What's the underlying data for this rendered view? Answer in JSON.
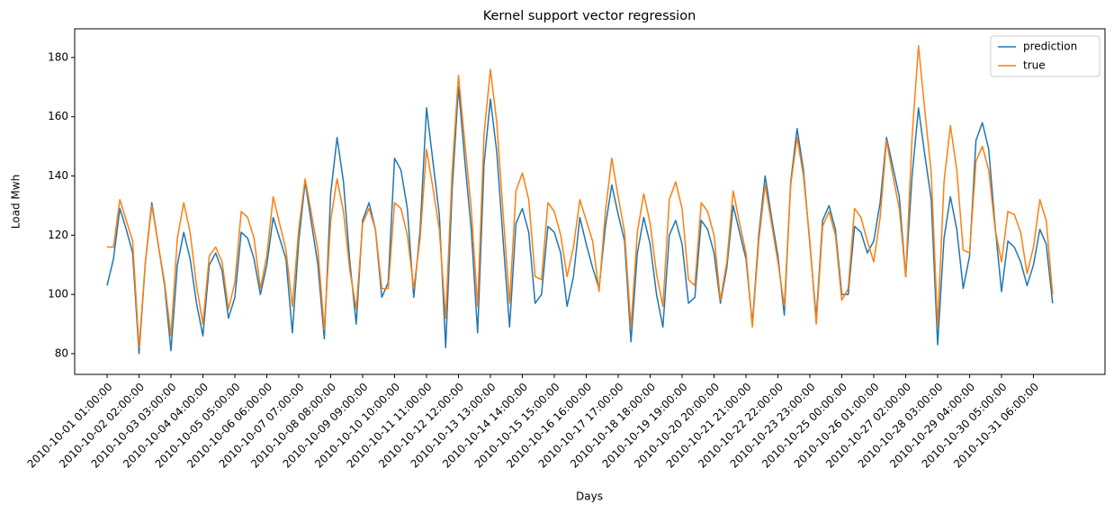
{
  "chart_data": {
    "type": "line",
    "title": "Kernel support vector regression",
    "x_label": "Days",
    "y_label": "Load Mwh",
    "categories": [
      "2010-10-01 01:00:00",
      null,
      null,
      null,
      null,
      "2010-10-02 02:00:00",
      null,
      null,
      null,
      null,
      "2010-10-03 03:00:00",
      null,
      null,
      null,
      null,
      "2010-10-04 04:00:00",
      null,
      null,
      null,
      null,
      "2010-10-05 05:00:00",
      null,
      null,
      null,
      null,
      "2010-10-06 06:00:00",
      null,
      null,
      null,
      null,
      "2010-10-07 07:00:00",
      null,
      null,
      null,
      null,
      "2010-10-08 08:00:00",
      null,
      null,
      null,
      null,
      "2010-10-09 09:00:00",
      null,
      null,
      null,
      null,
      "2010-10-10 10:00:00",
      null,
      null,
      null,
      null,
      "2010-10-11 11:00:00",
      null,
      null,
      null,
      null,
      "2010-10-12 12:00:00",
      null,
      null,
      null,
      null,
      "2010-10-13 13:00:00",
      null,
      null,
      null,
      null,
      "2010-10-14 14:00:00",
      null,
      null,
      null,
      null,
      "2010-10-15 15:00:00",
      null,
      null,
      null,
      null,
      "2010-10-16 16:00:00",
      null,
      null,
      null,
      null,
      "2010-10-17 17:00:00",
      null,
      null,
      null,
      null,
      "2010-10-18 18:00:00",
      null,
      null,
      null,
      null,
      "2010-10-19 19:00:00",
      null,
      null,
      null,
      null,
      "2010-10-20 20:00:00",
      null,
      null,
      null,
      null,
      "2010-10-21 21:00:00",
      null,
      null,
      null,
      null,
      "2010-10-22 22:00:00",
      null,
      null,
      null,
      null,
      "2010-10-23 23:00:00",
      null,
      null,
      null,
      null,
      "2010-10-25 00:00:00",
      null,
      null,
      null,
      null,
      "2010-10-26 01:00:00",
      null,
      null,
      null,
      null,
      "2010-10-27 02:00:00",
      null,
      null,
      null,
      null,
      "2010-10-28 03:00:00",
      null,
      null,
      null,
      null,
      "2010-10-29 04:00:00",
      null,
      null,
      null,
      null,
      "2010-10-30 05:00:00",
      null,
      null,
      null,
      null,
      "2010-10-31 06:00:00",
      null,
      null,
      null
    ],
    "series": [
      {
        "name": "prediction",
        "color": "#1f77b4",
        "values": [
          103,
          112,
          129,
          122,
          114,
          80,
          111,
          131,
          117,
          103,
          81,
          110,
          121,
          112,
          97,
          86,
          110,
          114,
          108,
          92,
          99,
          121,
          119,
          112,
          100,
          110,
          126,
          119,
          112,
          87,
          118,
          138,
          124,
          110,
          85,
          134,
          153,
          138,
          111,
          90,
          125,
          131,
          122,
          99,
          104,
          146,
          142,
          129,
          99,
          122,
          163,
          145,
          127,
          82,
          135,
          170,
          145,
          122,
          87,
          144,
          166,
          148,
          118,
          89,
          124,
          129,
          121,
          97,
          100,
          123,
          121,
          114,
          96,
          106,
          126,
          117,
          109,
          102,
          123,
          137,
          127,
          118,
          84,
          114,
          126,
          117,
          100,
          89,
          120,
          125,
          117,
          97,
          99,
          125,
          122,
          114,
          97,
          109,
          130,
          121,
          112,
          90,
          120,
          140,
          126,
          113,
          93,
          138,
          156,
          142,
          117,
          92,
          125,
          130,
          122,
          100,
          100,
          123,
          121,
          114,
          118,
          131,
          153,
          143,
          133,
          106,
          140,
          163,
          147,
          132,
          83,
          119,
          133,
          122,
          102,
          113,
          152,
          158,
          149,
          123,
          101,
          118,
          116,
          111,
          103,
          110,
          122,
          117,
          97
        ]
      },
      {
        "name": "true",
        "color": "#ff7f0e",
        "values": [
          116,
          116,
          132,
          125,
          118,
          82,
          111,
          130,
          117,
          104,
          86,
          119,
          131,
          121,
          103,
          90,
          113,
          116,
          111,
          95,
          104,
          128,
          126,
          119,
          102,
          113,
          133,
          124,
          115,
          96,
          122,
          139,
          127,
          115,
          88,
          125,
          139,
          128,
          108,
          95,
          124,
          129,
          122,
          102,
          102,
          131,
          129,
          120,
          102,
          119,
          149,
          136,
          122,
          92,
          141,
          174,
          151,
          129,
          96,
          154,
          176,
          158,
          127,
          97,
          135,
          141,
          132,
          106,
          105,
          131,
          128,
          120,
          106,
          116,
          132,
          125,
          118,
          101,
          128,
          146,
          133,
          121,
          89,
          121,
          134,
          124,
          107,
          96,
          132,
          138,
          129,
          105,
          103,
          131,
          128,
          120,
          98,
          111,
          135,
          124,
          114,
          89,
          118,
          137,
          124,
          111,
          96,
          137,
          153,
          140,
          118,
          90,
          123,
          128,
          120,
          98,
          102,
          129,
          126,
          118,
          111,
          126,
          152,
          140,
          129,
          106,
          153,
          184,
          162,
          141,
          89,
          138,
          157,
          142,
          115,
          114,
          145,
          150,
          142,
          122,
          111,
          128,
          127,
          121,
          107,
          116,
          132,
          125,
          100
        ]
      }
    ],
    "ylim": [
      73,
      189.7
    ],
    "yticks": [
      80,
      100,
      120,
      140,
      160,
      180
    ],
    "legend": "upper right"
  }
}
